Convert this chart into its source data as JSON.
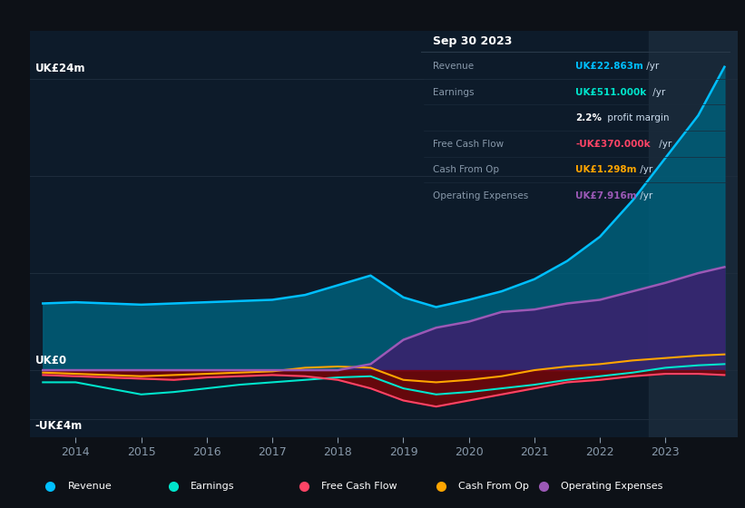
{
  "bg_color": "#0d1117",
  "plot_bg_color": "#0d1b2a",
  "grid_color": "#1e2d3d",
  "years": [
    2013.5,
    2014.0,
    2014.5,
    2015.0,
    2015.5,
    2016.0,
    2016.5,
    2017.0,
    2017.5,
    2018.0,
    2018.5,
    2019.0,
    2019.5,
    2020.0,
    2020.5,
    2021.0,
    2021.5,
    2022.0,
    2022.5,
    2023.0,
    2023.5,
    2023.9
  ],
  "revenue": [
    5.5,
    5.6,
    5.5,
    5.4,
    5.5,
    5.6,
    5.7,
    5.8,
    6.2,
    7.0,
    7.8,
    6.0,
    5.2,
    5.8,
    6.5,
    7.5,
    9.0,
    11.0,
    14.0,
    17.5,
    21.0,
    25.0
  ],
  "earnings": [
    -1.0,
    -1.0,
    -1.5,
    -2.0,
    -1.8,
    -1.5,
    -1.2,
    -1.0,
    -0.8,
    -0.6,
    -0.5,
    -1.5,
    -2.0,
    -1.8,
    -1.5,
    -1.2,
    -0.8,
    -0.5,
    -0.2,
    0.2,
    0.4,
    0.5
  ],
  "free_cash": [
    -0.4,
    -0.5,
    -0.6,
    -0.7,
    -0.8,
    -0.6,
    -0.5,
    -0.4,
    -0.5,
    -0.8,
    -1.5,
    -2.5,
    -3.0,
    -2.5,
    -2.0,
    -1.5,
    -1.0,
    -0.8,
    -0.5,
    -0.3,
    -0.3,
    -0.4
  ],
  "cash_op": [
    -0.2,
    -0.3,
    -0.4,
    -0.5,
    -0.4,
    -0.3,
    -0.2,
    -0.1,
    0.2,
    0.3,
    0.2,
    -0.8,
    -1.0,
    -0.8,
    -0.5,
    0.0,
    0.3,
    0.5,
    0.8,
    1.0,
    1.2,
    1.3
  ],
  "op_exp": [
    0.0,
    0.0,
    0.0,
    0.0,
    0.0,
    0.0,
    0.0,
    0.0,
    0.0,
    0.0,
    0.5,
    2.5,
    3.5,
    4.0,
    4.8,
    5.0,
    5.5,
    5.8,
    6.5,
    7.2,
    8.0,
    8.5
  ],
  "revenue_color": "#00bfff",
  "earnings_color": "#00e5cc",
  "free_cash_color": "#ff4466",
  "cash_op_color": "#ffa500",
  "op_exp_color": "#9b59b6",
  "revenue_fill": "#005f7a",
  "op_exp_fill": "#3d1f6e",
  "free_cash_fill": "#8b0000",
  "highlight_x_start": 2022.75,
  "highlight_x_end": 2024.1,
  "ylim": [
    -5.5,
    28
  ],
  "xlim": [
    2013.3,
    2024.1
  ],
  "xticks": [
    2014,
    2015,
    2016,
    2017,
    2018,
    2019,
    2020,
    2021,
    2022,
    2023
  ],
  "xtick_labels": [
    "2014",
    "2015",
    "2016",
    "2017",
    "2018",
    "2019",
    "2020",
    "2021",
    "2022",
    "2023"
  ],
  "y0_label": "UK£0",
  "y24_label": "UK£24m",
  "ym4_label": "-UK£4m",
  "tooltip_title": "Sep 30 2023",
  "tooltip_rows": [
    {
      "label": "Revenue",
      "value": "UK£22.863m",
      "unit": " /yr",
      "color": "#00bfff"
    },
    {
      "label": "Earnings",
      "value": "UK£511.000k",
      "unit": " /yr",
      "color": "#00e5cc"
    },
    {
      "label": "",
      "value": "2.2%",
      "unit": " profit margin",
      "color": "#ffffff"
    },
    {
      "label": "Free Cash Flow",
      "value": "-UK£370.000k",
      "unit": " /yr",
      "color": "#ff4466"
    },
    {
      "label": "Cash From Op",
      "value": "UK£1.298m",
      "unit": " /yr",
      "color": "#ffa500"
    },
    {
      "label": "Operating Expenses",
      "value": "UK£7.916m",
      "unit": " /yr",
      "color": "#9b59b6"
    }
  ],
  "legend_items": [
    {
      "label": "Revenue",
      "color": "#00bfff"
    },
    {
      "label": "Earnings",
      "color": "#00e5cc"
    },
    {
      "label": "Free Cash Flow",
      "color": "#ff4466"
    },
    {
      "label": "Cash From Op",
      "color": "#ffa500"
    },
    {
      "label": "Operating Expenses",
      "color": "#9b59b6"
    }
  ]
}
